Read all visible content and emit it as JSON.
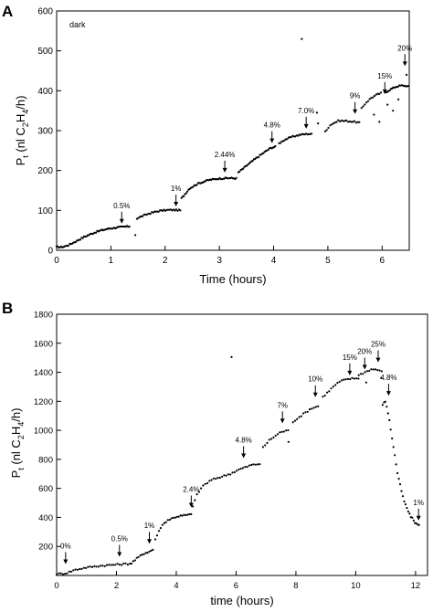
{
  "chart_data": [
    {
      "type": "scatter",
      "panel_label": "A",
      "xlabel": "Time (hours)",
      "ylabel": "Pt (nl C2H4/h)",
      "ylabel_parts": {
        "p": "P",
        "p_sub": "t",
        "open": " (nl C",
        "c_sub": "2",
        "h": "H",
        "h_sub": "4",
        "close": "/h)"
      },
      "xlim": [
        0,
        6.5
      ],
      "ylim": [
        0,
        600
      ],
      "xticks": [
        0,
        1,
        2,
        3,
        4,
        5,
        6
      ],
      "yticks": [
        0,
        100,
        200,
        300,
        400,
        500,
        600
      ],
      "annotation": "dark",
      "markers": [
        {
          "label": "0.5%",
          "x": 1.2,
          "y": 60
        },
        {
          "label": "1%",
          "x": 2.2,
          "y": 103
        },
        {
          "label": "2.44%",
          "x": 3.1,
          "y": 188
        },
        {
          "label": "4.8%",
          "x": 3.97,
          "y": 262
        },
        {
          "label": "7.0%",
          "x": 4.6,
          "y": 298
        },
        {
          "label": "9%",
          "x": 5.5,
          "y": 335
        },
        {
          "label": "15%",
          "x": 6.05,
          "y": 385
        },
        {
          "label": "20%",
          "x": 6.42,
          "y": 455
        }
      ],
      "segments": [
        {
          "x": [
            0,
            0.1,
            0.2,
            0.35,
            0.5,
            0.65,
            0.8,
            0.95,
            1.1,
            1.25,
            1.35
          ],
          "y": [
            8,
            8,
            12,
            22,
            33,
            42,
            49,
            54,
            57,
            59,
            60
          ],
          "step": 0.022
        },
        {
          "x": [
            1.48,
            1.6,
            1.75,
            1.9,
            2.05,
            2.2,
            2.28
          ],
          "y": [
            80,
            87,
            94,
            99,
            101,
            101,
            100
          ],
          "step": 0.025
        },
        {
          "x": [
            2.3,
            2.45,
            2.6,
            2.8,
            3.0,
            3.2,
            3.32
          ],
          "y": [
            130,
            155,
            167,
            176,
            180,
            181,
            180
          ],
          "step": 0.022
        },
        {
          "x": [
            3.35,
            3.5,
            3.65,
            3.8,
            3.95,
            4.05
          ],
          "y": [
            195,
            212,
            228,
            243,
            257,
            260
          ],
          "step": 0.022
        },
        {
          "x": [
            4.1,
            4.2,
            4.35,
            4.5,
            4.65,
            4.72
          ],
          "y": [
            268,
            277,
            285,
            290,
            292,
            291
          ],
          "step": 0.025
        },
        {
          "x": [
            4.95,
            5.05,
            5.2,
            5.35,
            5.5,
            5.58
          ],
          "y": [
            298,
            315,
            325,
            324,
            322,
            320
          ],
          "step": 0.03
        },
        {
          "x": [
            5.62,
            5.7,
            5.8,
            5.9,
            6.0
          ],
          "y": [
            355,
            370,
            382,
            390,
            395
          ],
          "step": 0.03
        },
        {
          "x": [
            6.05,
            6.15,
            6.25,
            6.35,
            6.45,
            6.5
          ],
          "y": [
            395,
            403,
            410,
            413,
            412,
            410
          ],
          "step": 0.022
        }
      ],
      "outliers": [
        {
          "x": 1.45,
          "y": 38
        },
        {
          "x": 4.52,
          "y": 530
        },
        {
          "x": 4.8,
          "y": 345
        },
        {
          "x": 4.82,
          "y": 318
        },
        {
          "x": 5.85,
          "y": 340
        },
        {
          "x": 5.95,
          "y": 322
        },
        {
          "x": 6.1,
          "y": 365
        },
        {
          "x": 6.2,
          "y": 350
        },
        {
          "x": 6.3,
          "y": 378
        },
        {
          "x": 6.45,
          "y": 440
        }
      ]
    },
    {
      "type": "scatter",
      "panel_label": "B",
      "xlabel": "time (hours)",
      "ylabel": "Pt (nl C2H4/h)",
      "ylabel_parts": {
        "p": "P",
        "p_sub": "t",
        "open": " (nl C",
        "c_sub": "2",
        "h": "H",
        "h_sub": "4",
        "close": "/h)"
      },
      "xlim": [
        0,
        12.4
      ],
      "ylim": [
        0,
        1800
      ],
      "xticks": [
        0,
        2,
        4,
        6,
        8,
        10,
        12
      ],
      "yticks": [
        200,
        400,
        600,
        800,
        1000,
        1200,
        1400,
        1600,
        1800
      ],
      "markers": [
        {
          "label": "0%",
          "x": 0.3,
          "y": 60
        },
        {
          "label": "0.5%",
          "x": 2.1,
          "y": 110
        },
        {
          "label": "1%",
          "x": 3.1,
          "y": 200
        },
        {
          "label": "2.4%",
          "x": 4.5,
          "y": 450
        },
        {
          "label": "4.8%",
          "x": 6.25,
          "y": 790
        },
        {
          "label": "7%",
          "x": 7.55,
          "y": 1030
        },
        {
          "label": "10%",
          "x": 8.65,
          "y": 1210
        },
        {
          "label": "15%",
          "x": 9.8,
          "y": 1360
        },
        {
          "label": "20%",
          "x": 10.3,
          "y": 1400
        },
        {
          "label": "25%",
          "x": 10.75,
          "y": 1450
        },
        {
          "label": "4.8%",
          "x": 11.1,
          "y": 1220
        },
        {
          "label": "1%",
          "x": 12.1,
          "y": 360
        }
      ],
      "segments": [
        {
          "x": [
            0,
            0.3,
            0.6,
            1.0,
            1.4,
            1.8,
            2.2,
            2.5
          ],
          "y": [
            10,
            15,
            38,
            55,
            65,
            72,
            78,
            82
          ],
          "step": 0.07
        },
        {
          "x": [
            2.5,
            2.7,
            2.9,
            3.1,
            3.25
          ],
          "y": [
            85,
            120,
            150,
            165,
            180
          ],
          "step": 0.06
        },
        {
          "x": [
            3.3,
            3.5,
            3.7,
            4.0,
            4.3,
            4.5
          ],
          "y": [
            250,
            340,
            380,
            405,
            415,
            420
          ],
          "step": 0.06
        },
        {
          "x": [
            4.55,
            4.7,
            4.9,
            5.2,
            5.5,
            5.8,
            6.1,
            6.5,
            6.8
          ],
          "y": [
            480,
            560,
            620,
            660,
            680,
            700,
            730,
            760,
            770
          ],
          "step": 0.07
        },
        {
          "x": [
            6.9,
            7.1,
            7.3,
            7.5,
            7.8
          ],
          "y": [
            880,
            930,
            960,
            990,
            1000
          ],
          "step": 0.07
        },
        {
          "x": [
            7.9,
            8.1,
            8.3,
            8.5,
            8.8
          ],
          "y": [
            1060,
            1090,
            1120,
            1150,
            1170
          ],
          "step": 0.07
        },
        {
          "x": [
            8.9,
            9.1,
            9.3,
            9.5,
            9.8,
            10.1
          ],
          "y": [
            1230,
            1270,
            1310,
            1340,
            1355,
            1360
          ],
          "step": 0.07
        },
        {
          "x": [
            10.1,
            10.3,
            10.5,
            10.7,
            10.9
          ],
          "y": [
            1380,
            1400,
            1420,
            1420,
            1400
          ],
          "step": 0.07
        },
        {
          "x": [
            10.9,
            11.0,
            11.1,
            11.25,
            11.4,
            11.6,
            11.8,
            12.0,
            12.15
          ],
          "y": [
            1180,
            1200,
            1100,
            900,
            700,
            520,
            420,
            360,
            340
          ],
          "step": 0.045
        }
      ],
      "outliers": [
        {
          "x": 5.85,
          "y": 1505
        },
        {
          "x": 7.75,
          "y": 920
        },
        {
          "x": 10.35,
          "y": 1330
        },
        {
          "x": 10.85,
          "y": 1360
        }
      ]
    }
  ]
}
